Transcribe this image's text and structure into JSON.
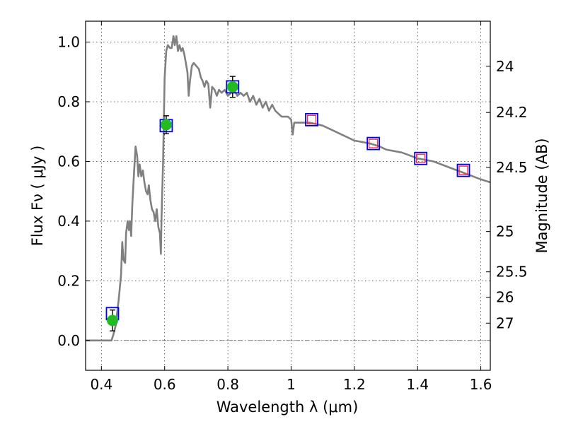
{
  "chart_data": {
    "type": "line",
    "xlabel": "Wavelength  λ (μm)",
    "ylabel": "Flux  Fν  ( μJy )",
    "ylabel_right": "Magnitude (AB)",
    "xlim": [
      0.35,
      1.63
    ],
    "ylim": [
      -0.1,
      1.07
    ],
    "grid": true,
    "x_ticks": [
      {
        "value": 0.4,
        "label": "0.4"
      },
      {
        "value": 0.6,
        "label": "0.6"
      },
      {
        "value": 0.8,
        "label": "0.8"
      },
      {
        "value": 1.0,
        "label": "1"
      },
      {
        "value": 1.2,
        "label": "1.2"
      },
      {
        "value": 1.4,
        "label": "1.4"
      },
      {
        "value": 1.6,
        "label": "1.6"
      }
    ],
    "y_ticks": [
      {
        "value": 0.0,
        "label": "0.0"
      },
      {
        "value": 0.2,
        "label": "0.2"
      },
      {
        "value": 0.4,
        "label": "0.4"
      },
      {
        "value": 0.6,
        "label": "0.6"
      },
      {
        "value": 0.8,
        "label": "0.8"
      },
      {
        "value": 1.0,
        "label": "1.0"
      }
    ],
    "right_ticks": [
      {
        "flux": 0.919,
        "label": "24"
      },
      {
        "flux": 0.764,
        "label": "24.2"
      },
      {
        "flux": 0.58,
        "label": "24.5"
      },
      {
        "flux": 0.365,
        "label": "25"
      },
      {
        "flux": 0.23,
        "label": "25.5"
      },
      {
        "flux": 0.145,
        "label": "26"
      },
      {
        "flux": 0.058,
        "label": "27"
      }
    ],
    "zero_line": {
      "y": 0.0,
      "color": "#555555"
    },
    "series": [
      {
        "kind": "line",
        "color": "#808080",
        "points": [
          [
            0.35,
            0.0
          ],
          [
            0.41,
            0.0
          ],
          [
            0.432,
            0.0
          ],
          [
            0.438,
            0.02
          ],
          [
            0.445,
            0.05
          ],
          [
            0.455,
            0.14
          ],
          [
            0.462,
            0.22
          ],
          [
            0.466,
            0.33
          ],
          [
            0.47,
            0.27
          ],
          [
            0.475,
            0.26
          ],
          [
            0.478,
            0.36
          ],
          [
            0.483,
            0.4
          ],
          [
            0.487,
            0.37
          ],
          [
            0.49,
            0.4
          ],
          [
            0.494,
            0.35
          ],
          [
            0.498,
            0.46
          ],
          [
            0.503,
            0.56
          ],
          [
            0.508,
            0.65
          ],
          [
            0.513,
            0.62
          ],
          [
            0.517,
            0.55
          ],
          [
            0.521,
            0.59
          ],
          [
            0.526,
            0.55
          ],
          [
            0.531,
            0.57
          ],
          [
            0.536,
            0.53
          ],
          [
            0.541,
            0.5
          ],
          [
            0.546,
            0.49
          ],
          [
            0.55,
            0.52
          ],
          [
            0.555,
            0.47
          ],
          [
            0.56,
            0.44
          ],
          [
            0.565,
            0.43
          ],
          [
            0.57,
            0.4
          ],
          [
            0.575,
            0.44
          ],
          [
            0.58,
            0.38
          ],
          [
            0.585,
            0.36
          ],
          [
            0.588,
            0.29
          ],
          [
            0.59,
            0.41
          ],
          [
            0.595,
            0.6
          ],
          [
            0.6,
            0.88
          ],
          [
            0.605,
            0.97
          ],
          [
            0.61,
            0.99
          ],
          [
            0.617,
            0.98
          ],
          [
            0.622,
            0.98
          ],
          [
            0.628,
            1.02
          ],
          [
            0.632,
            0.99
          ],
          [
            0.637,
            1.02
          ],
          [
            0.642,
            0.97
          ],
          [
            0.647,
            0.99
          ],
          [
            0.652,
            0.97
          ],
          [
            0.657,
            0.98
          ],
          [
            0.662,
            0.96
          ],
          [
            0.667,
            0.93
          ],
          [
            0.672,
            0.9
          ],
          [
            0.676,
            0.82
          ],
          [
            0.68,
            0.87
          ],
          [
            0.686,
            0.92
          ],
          [
            0.692,
            0.93
          ],
          [
            0.7,
            0.92
          ],
          [
            0.708,
            0.91
          ],
          [
            0.715,
            0.88
          ],
          [
            0.72,
            0.87
          ],
          [
            0.726,
            0.85
          ],
          [
            0.732,
            0.87
          ],
          [
            0.738,
            0.86
          ],
          [
            0.744,
            0.78
          ],
          [
            0.75,
            0.85
          ],
          [
            0.758,
            0.84
          ],
          [
            0.765,
            0.82
          ],
          [
            0.772,
            0.84
          ],
          [
            0.78,
            0.83
          ],
          [
            0.79,
            0.84
          ],
          [
            0.8,
            0.82
          ],
          [
            0.81,
            0.83
          ],
          [
            0.82,
            0.84
          ],
          [
            0.83,
            0.82
          ],
          [
            0.84,
            0.83
          ],
          [
            0.85,
            0.82
          ],
          [
            0.86,
            0.83
          ],
          [
            0.87,
            0.8
          ],
          [
            0.88,
            0.82
          ],
          [
            0.89,
            0.79
          ],
          [
            0.9,
            0.81
          ],
          [
            0.91,
            0.78
          ],
          [
            0.92,
            0.8
          ],
          [
            0.93,
            0.77
          ],
          [
            0.94,
            0.79
          ],
          [
            0.95,
            0.77
          ],
          [
            0.96,
            0.76
          ],
          [
            0.97,
            0.75
          ],
          [
            0.98,
            0.75
          ],
          [
            0.99,
            0.75
          ],
          [
            1.0,
            0.74
          ],
          [
            1.005,
            0.69
          ],
          [
            1.01,
            0.73
          ],
          [
            1.03,
            0.73
          ],
          [
            1.06,
            0.73
          ],
          [
            1.1,
            0.72
          ],
          [
            1.14,
            0.7
          ],
          [
            1.18,
            0.68
          ],
          [
            1.2,
            0.67
          ],
          [
            1.25,
            0.66
          ],
          [
            1.28,
            0.65
          ],
          [
            1.3,
            0.64
          ],
          [
            1.35,
            0.63
          ],
          [
            1.4,
            0.61
          ],
          [
            1.45,
            0.6
          ],
          [
            1.5,
            0.58
          ],
          [
            1.55,
            0.56
          ],
          [
            1.6,
            0.54
          ],
          [
            1.63,
            0.53
          ]
        ]
      },
      {
        "kind": "square",
        "color": "#0000ee",
        "points": [
          [
            0.435,
            0.09
          ],
          [
            0.605,
            0.72
          ],
          [
            0.815,
            0.85
          ],
          [
            1.065,
            0.74
          ],
          [
            1.26,
            0.66
          ],
          [
            1.41,
            0.61
          ],
          [
            1.545,
            0.57
          ]
        ]
      },
      {
        "kind": "square-small",
        "color": "#ee3344",
        "points": [
          [
            1.065,
            0.74
          ],
          [
            1.26,
            0.66
          ],
          [
            1.41,
            0.61
          ],
          [
            1.545,
            0.57
          ]
        ]
      },
      {
        "kind": "circle-errorbar",
        "color": "#22bb22",
        "points": [
          {
            "x": 0.435,
            "y": 0.067,
            "err": 0.035
          },
          {
            "x": 0.605,
            "y": 0.723,
            "err": 0.03
          },
          {
            "x": 0.815,
            "y": 0.85,
            "err": 0.035
          }
        ]
      }
    ]
  }
}
